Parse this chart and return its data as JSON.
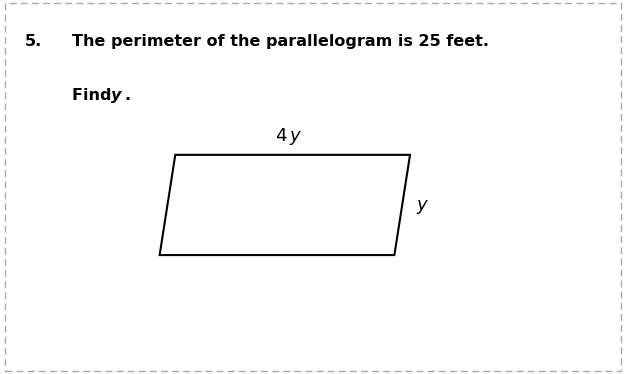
{
  "title_number": "5.",
  "title_line1": "The perimeter of the parallelogram is 25 feet.",
  "title_line2_pre": "Find ",
  "title_line2_italic": "y",
  "title_line2_post": ".",
  "label_top_pre": "4",
  "label_top_italic": "y",
  "label_right": "y",
  "background_color": "#ffffff",
  "border_color": "#aaaaaa",
  "shape_color": "#000000",
  "text_color": "#000000",
  "title_fontsize": 11.5,
  "label_fontsize": 13
}
